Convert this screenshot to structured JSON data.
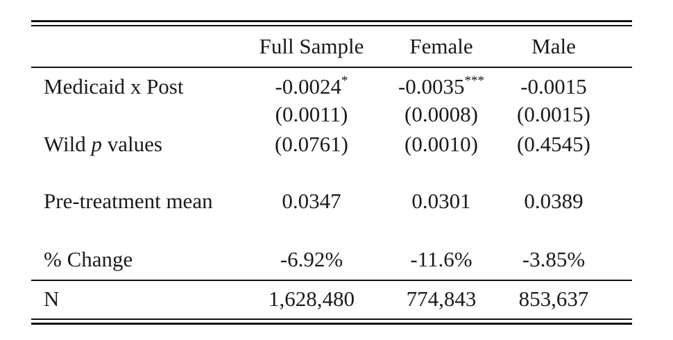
{
  "table": {
    "columns": [
      "Full Sample",
      "Female",
      "Male"
    ],
    "rows": {
      "medicaid_post": {
        "label": "Medicaid x Post",
        "values": [
          "-0.0024",
          "-0.0035",
          "-0.0015"
        ],
        "stars": [
          "*",
          "***",
          ""
        ]
      },
      "std_errors": {
        "values": [
          "(0.0011)",
          "(0.0008)",
          "(0.0015)"
        ]
      },
      "wild_p": {
        "label_prefix": "Wild ",
        "label_p": "p",
        "label_suffix": " values",
        "values": [
          "(0.0761)",
          "(0.0010)",
          "(0.4545)"
        ]
      },
      "pretreatment": {
        "label": "Pre-treatment mean",
        "values": [
          "0.0347",
          "0.0301",
          "0.0389"
        ]
      },
      "pct_change": {
        "label": "% Change",
        "values": [
          "-6.92%",
          "-11.6%",
          "-3.85%"
        ]
      },
      "n": {
        "label": "N",
        "values": [
          "1,628,480",
          "774,843",
          "853,637"
        ]
      }
    }
  }
}
